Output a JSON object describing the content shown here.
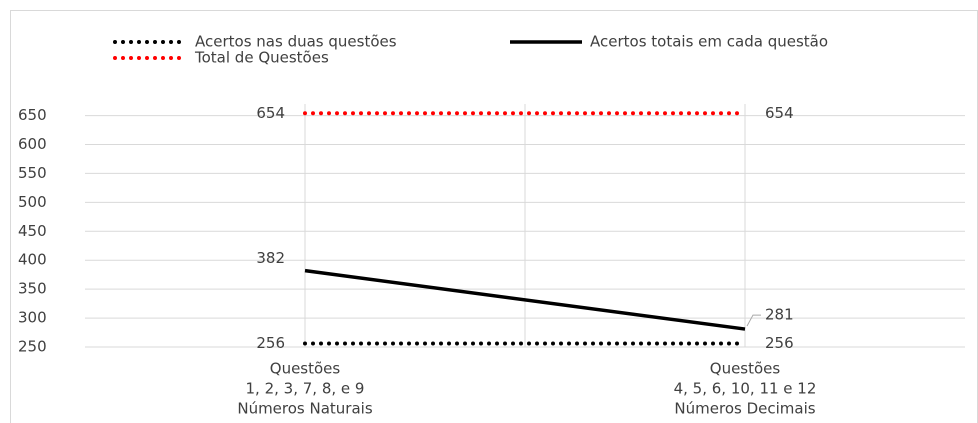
{
  "chart_data": {
    "type": "line",
    "categories": [
      [
        "Questões",
        "1, 2, 3, 7, 8, e 9",
        "Números Naturais"
      ],
      [
        "Questões",
        "4, 5, 6, 10, 11 e 12",
        "Números Decimais"
      ]
    ],
    "series": [
      {
        "name": "Acertos nas duas questões",
        "color": "#000000",
        "dash": "dotted",
        "values": [
          256,
          256
        ]
      },
      {
        "name": "Acertos totais em cada questão",
        "color": "#000000",
        "dash": "solid",
        "values": [
          382,
          281
        ]
      },
      {
        "name": "Total de Questões",
        "color": "#ff0000",
        "dash": "dotted",
        "values": [
          654,
          654
        ]
      }
    ],
    "ylim": [
      250,
      670
    ],
    "yticks": [
      250,
      300,
      350,
      400,
      450,
      500,
      550,
      600,
      650
    ],
    "grid": true,
    "legend": "top",
    "data_labels": true
  }
}
